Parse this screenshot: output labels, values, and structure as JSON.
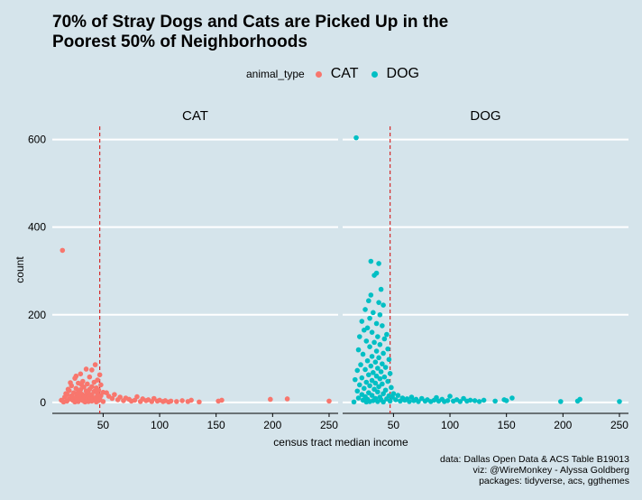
{
  "chart_data": {
    "type": "scatter",
    "title_lines": [
      "70% of Stray Dogs and Cats are Picked Up in the",
      "Poorest 50% of Neighborhoods"
    ],
    "legend": {
      "title": "animal_type",
      "placement": "top",
      "entries": [
        {
          "label": "CAT",
          "color": "#f8766d"
        },
        {
          "label": "DOG",
          "color": "#00bfc4"
        }
      ]
    },
    "xlabel": "census tract median income",
    "ylabel": "count",
    "xlim": [
      5,
      258
    ],
    "ylim": [
      -25,
      630
    ],
    "xticks": [
      50,
      100,
      150,
      200,
      250
    ],
    "yticks": [
      0,
      200,
      400,
      600
    ],
    "grid": "horizontal major",
    "reference_line": {
      "x": 47,
      "color": "#d42a2a",
      "style": "dashed"
    },
    "panels": [
      {
        "name": "CAT",
        "color": "#f8766d",
        "points": [
          [
            14,
            347
          ],
          [
            43,
            86
          ],
          [
            35,
            76
          ],
          [
            40,
            74
          ],
          [
            30,
            65
          ],
          [
            47,
            63
          ],
          [
            38,
            58
          ],
          [
            25,
            55
          ],
          [
            45,
            51
          ],
          [
            32,
            48
          ],
          [
            42,
            46
          ],
          [
            28,
            44
          ],
          [
            36,
            42
          ],
          [
            48,
            40
          ],
          [
            22,
            38
          ],
          [
            40,
            36
          ],
          [
            33,
            35
          ],
          [
            44,
            33
          ],
          [
            26,
            32
          ],
          [
            38,
            30
          ],
          [
            30,
            29
          ],
          [
            46,
            28
          ],
          [
            20,
            27
          ],
          [
            35,
            26
          ],
          [
            42,
            25
          ],
          [
            28,
            24
          ],
          [
            50,
            23
          ],
          [
            24,
            22
          ],
          [
            37,
            21
          ],
          [
            45,
            20
          ],
          [
            31,
            19
          ],
          [
            18,
            18
          ],
          [
            40,
            18
          ],
          [
            27,
            17
          ],
          [
            34,
            16
          ],
          [
            48,
            15
          ],
          [
            22,
            15
          ],
          [
            38,
            14
          ],
          [
            29,
            13
          ],
          [
            44,
            12
          ],
          [
            16,
            12
          ],
          [
            33,
            11
          ],
          [
            41,
            10
          ],
          [
            25,
            10
          ],
          [
            36,
            9
          ],
          [
            47,
            8
          ],
          [
            20,
            8
          ],
          [
            30,
            7
          ],
          [
            39,
            7
          ],
          [
            43,
            6
          ],
          [
            27,
            6
          ],
          [
            35,
            5
          ],
          [
            13,
            5
          ],
          [
            23,
            5
          ],
          [
            46,
            4
          ],
          [
            32,
            4
          ],
          [
            18,
            3
          ],
          [
            40,
            3
          ],
          [
            28,
            2
          ],
          [
            37,
            2
          ],
          [
            50,
            2
          ],
          [
            15,
            1
          ],
          [
            25,
            1
          ],
          [
            34,
            1
          ],
          [
            44,
            1
          ],
          [
            21,
            45
          ],
          [
            19,
            30
          ],
          [
            17,
            20
          ],
          [
            23,
            12
          ],
          [
            26,
            60
          ],
          [
            31,
            40
          ],
          [
            53,
            22
          ],
          [
            55,
            14
          ],
          [
            58,
            9
          ],
          [
            60,
            18
          ],
          [
            63,
            6
          ],
          [
            65,
            12
          ],
          [
            68,
            4
          ],
          [
            70,
            10
          ],
          [
            73,
            7
          ],
          [
            75,
            3
          ],
          [
            78,
            5
          ],
          [
            80,
            13
          ],
          [
            83,
            2
          ],
          [
            85,
            8
          ],
          [
            88,
            4
          ],
          [
            90,
            6
          ],
          [
            93,
            2
          ],
          [
            95,
            9
          ],
          [
            98,
            3
          ],
          [
            100,
            5
          ],
          [
            103,
            2
          ],
          [
            105,
            4
          ],
          [
            108,
            1
          ],
          [
            110,
            3
          ],
          [
            115,
            2
          ],
          [
            120,
            4
          ],
          [
            125,
            2
          ],
          [
            128,
            5
          ],
          [
            135,
            1
          ],
          [
            152,
            3
          ],
          [
            155,
            5
          ],
          [
            198,
            7
          ],
          [
            213,
            8
          ],
          [
            250,
            3
          ]
        ]
      },
      {
        "name": "DOG",
        "color": "#00bfc4",
        "points": [
          [
            17,
            604
          ],
          [
            30,
            322
          ],
          [
            37,
            317
          ],
          [
            35,
            295
          ],
          [
            33,
            290
          ],
          [
            39,
            258
          ],
          [
            30,
            245
          ],
          [
            28,
            232
          ],
          [
            37,
            228
          ],
          [
            41,
            222
          ],
          [
            25,
            212
          ],
          [
            32,
            205
          ],
          [
            38,
            200
          ],
          [
            29,
            192
          ],
          [
            22,
            185
          ],
          [
            35,
            180
          ],
          [
            40,
            175
          ],
          [
            27,
            170
          ],
          [
            24,
            165
          ],
          [
            31,
            160
          ],
          [
            44,
            155
          ],
          [
            36,
            150
          ],
          [
            20,
            150
          ],
          [
            42,
            145
          ],
          [
            26,
            140
          ],
          [
            33,
            137
          ],
          [
            38,
            132
          ],
          [
            29,
            127
          ],
          [
            45,
            122
          ],
          [
            19,
            120
          ],
          [
            35,
            117
          ],
          [
            41,
            112
          ],
          [
            23,
            110
          ],
          [
            31,
            105
          ],
          [
            37,
            102
          ],
          [
            46,
            98
          ],
          [
            27,
            95
          ],
          [
            34,
            92
          ],
          [
            40,
            88
          ],
          [
            21,
            86
          ],
          [
            30,
            83
          ],
          [
            43,
            80
          ],
          [
            36,
            78
          ],
          [
            25,
            75
          ],
          [
            18,
            73
          ],
          [
            39,
            70
          ],
          [
            32,
            68
          ],
          [
            47,
            66
          ],
          [
            28,
            63
          ],
          [
            35,
            60
          ],
          [
            42,
            58
          ],
          [
            22,
            56
          ],
          [
            38,
            54
          ],
          [
            16,
            52
          ],
          [
            31,
            50
          ],
          [
            45,
            48
          ],
          [
            26,
            46
          ],
          [
            34,
            44
          ],
          [
            40,
            42
          ],
          [
            20,
            40
          ],
          [
            29,
            38
          ],
          [
            37,
            36
          ],
          [
            48,
            34
          ],
          [
            24,
            32
          ],
          [
            33,
            30
          ],
          [
            43,
            28
          ],
          [
            18,
            26
          ],
          [
            36,
            24
          ],
          [
            28,
            22
          ],
          [
            41,
            20
          ],
          [
            22,
            18
          ],
          [
            31,
            16
          ],
          [
            46,
            15
          ],
          [
            25,
            13
          ],
          [
            38,
            12
          ],
          [
            19,
            10
          ],
          [
            34,
            9
          ],
          [
            44,
            8
          ],
          [
            27,
            7
          ],
          [
            39,
            6
          ],
          [
            23,
            5
          ],
          [
            32,
            4
          ],
          [
            47,
            3
          ],
          [
            29,
            2
          ],
          [
            36,
            2
          ],
          [
            41,
            1
          ],
          [
            15,
            1
          ],
          [
            26,
            1
          ],
          [
            49,
            12
          ],
          [
            50,
            20
          ],
          [
            52,
            6
          ],
          [
            54,
            16
          ],
          [
            56,
            3
          ],
          [
            58,
            10
          ],
          [
            60,
            5
          ],
          [
            62,
            8
          ],
          [
            64,
            2
          ],
          [
            66,
            12
          ],
          [
            68,
            4
          ],
          [
            70,
            7
          ],
          [
            72,
            2
          ],
          [
            75,
            9
          ],
          [
            78,
            3
          ],
          [
            80,
            6
          ],
          [
            83,
            2
          ],
          [
            86,
            5
          ],
          [
            88,
            11
          ],
          [
            90,
            3
          ],
          [
            93,
            7
          ],
          [
            95,
            2
          ],
          [
            98,
            4
          ],
          [
            100,
            14
          ],
          [
            103,
            3
          ],
          [
            106,
            6
          ],
          [
            109,
            2
          ],
          [
            112,
            9
          ],
          [
            115,
            3
          ],
          [
            118,
            5
          ],
          [
            122,
            4
          ],
          [
            126,
            2
          ],
          [
            130,
            5
          ],
          [
            140,
            3
          ],
          [
            148,
            6
          ],
          [
            150,
            4
          ],
          [
            155,
            10
          ],
          [
            198,
            2
          ],
          [
            213,
            3
          ],
          [
            215,
            7
          ],
          [
            250,
            2
          ]
        ]
      }
    ],
    "caption": [
      "data: Dallas Open Data & ACS Table B19013",
      "viz: @WireMonkey - Alyssa Goldberg",
      "packages: tidyverse, acs, ggthemes"
    ]
  }
}
